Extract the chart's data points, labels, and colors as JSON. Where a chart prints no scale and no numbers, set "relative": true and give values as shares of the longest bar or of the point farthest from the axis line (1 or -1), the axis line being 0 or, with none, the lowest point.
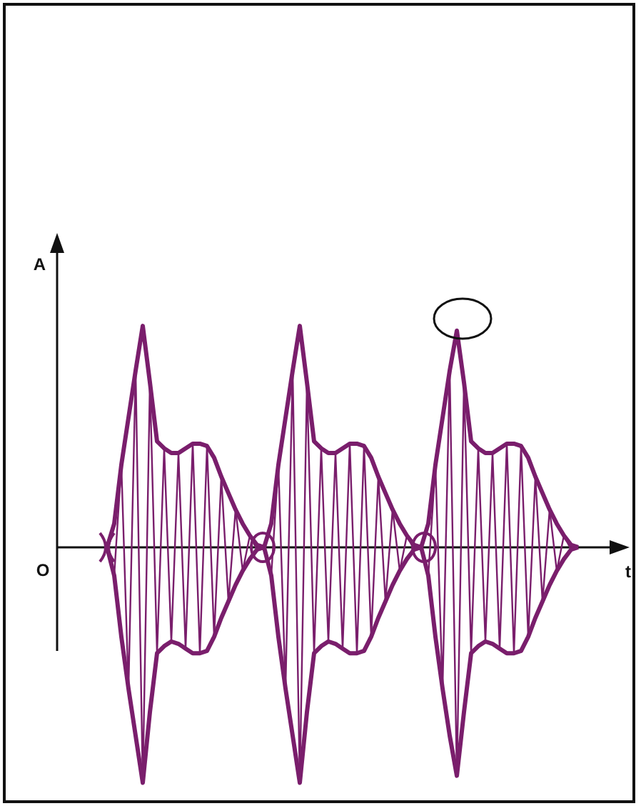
{
  "chart_data": {
    "type": "line",
    "relative": true,
    "xlabel": "t",
    "ylabel": "A",
    "annotations": [
      "O"
    ],
    "tick_labels": false,
    "categories": [
      null,
      null,
      null,
      null,
      null,
      null,
      null,
      null,
      null,
      null,
      null,
      null,
      null,
      null,
      null,
      null,
      null,
      null,
      null,
      null,
      null,
      null,
      null,
      null,
      null,
      null,
      null,
      null,
      null,
      null,
      null,
      null,
      null,
      null,
      null,
      null,
      null,
      null,
      null,
      null,
      null,
      null,
      null,
      null,
      null,
      null,
      null,
      null,
      null,
      null,
      null,
      null,
      null,
      null,
      null,
      null,
      null,
      null,
      null,
      null,
      null,
      null,
      null,
      null,
      null,
      null,
      null,
      null,
      null,
      null,
      null,
      null,
      null,
      null,
      null,
      null,
      null,
      null,
      null
    ],
    "series": [
      {
        "color": "#7a1e6c",
        "values": [
          null,
          null,
          null,
          null,
          null,
          null,
          null,
          0,
          0.1,
          0.35,
          0.55,
          0.75,
          0.94,
          0.7,
          0.45,
          0.42,
          0.4,
          0.4,
          0.42,
          0.44,
          0.44,
          0.43,
          0.38,
          0.3,
          0.23,
          0.16,
          0.1,
          0.05,
          0.01,
          0,
          0.1,
          0.35,
          0.55,
          0.75,
          0.94,
          0.7,
          0.45,
          0.42,
          0.4,
          0.4,
          0.42,
          0.44,
          0.44,
          0.43,
          0.38,
          0.3,
          0.23,
          0.16,
          0.1,
          0.05,
          0.01,
          0,
          0.1,
          0.35,
          0.55,
          0.75,
          0.92,
          0.7,
          0.45,
          0.42,
          0.4,
          0.4,
          0.42,
          0.44,
          0.44,
          0.43,
          0.38,
          0.3,
          0.23,
          0.16,
          0.1,
          0.05,
          0.01,
          0,
          null,
          null,
          null,
          null,
          null
        ]
      },
      {
        "color": "#7a1e6c",
        "values": [
          null,
          null,
          null,
          null,
          null,
          null,
          null,
          0,
          -0.12,
          -0.38,
          -0.6,
          -0.8,
          -1,
          -0.7,
          -0.45,
          -0.42,
          -0.4,
          -0.41,
          -0.43,
          -0.45,
          -0.45,
          -0.44,
          -0.38,
          -0.3,
          -0.23,
          -0.16,
          -0.1,
          -0.05,
          -0.01,
          0,
          -0.12,
          -0.38,
          -0.6,
          -0.8,
          -1,
          -0.7,
          -0.45,
          -0.42,
          -0.4,
          -0.41,
          -0.43,
          -0.45,
          -0.45,
          -0.44,
          -0.38,
          -0.3,
          -0.23,
          -0.16,
          -0.1,
          -0.05,
          -0.01,
          0,
          -0.12,
          -0.38,
          -0.6,
          -0.8,
          -0.97,
          -0.7,
          -0.45,
          -0.42,
          -0.4,
          -0.41,
          -0.43,
          -0.45,
          -0.45,
          -0.44,
          -0.38,
          -0.3,
          -0.23,
          -0.16,
          -0.1,
          -0.05,
          -0.01,
          0,
          null,
          null,
          null,
          null,
          null
        ]
      },
      {
        "color": "#7a1e6c",
        "values": [
          null,
          null,
          null,
          null,
          null,
          null,
          null,
          0,
          -0.12,
          0.35,
          -0.6,
          0.75,
          -1,
          0.7,
          -0.45,
          0.42,
          -0.4,
          0.4,
          -0.43,
          0.44,
          -0.45,
          0.43,
          -0.38,
          0.3,
          -0.23,
          0.16,
          -0.1,
          0.05,
          -0.01,
          0,
          -0.12,
          0.35,
          -0.6,
          0.75,
          -1,
          0.7,
          -0.45,
          0.42,
          -0.4,
          0.4,
          -0.43,
          0.44,
          -0.45,
          0.43,
          -0.38,
          0.3,
          -0.23,
          0.16,
          -0.1,
          0.05,
          -0.01,
          0,
          -0.12,
          0.35,
          -0.6,
          0.75,
          -0.97,
          0.7,
          -0.45,
          0.42,
          -0.4,
          0.4,
          -0.43,
          0.44,
          -0.45,
          0.43,
          -0.38,
          0.3,
          -0.23,
          0.16,
          -0.1,
          0.05,
          -0.01,
          0,
          null,
          null,
          null,
          null,
          null
        ]
      }
    ]
  }
}
